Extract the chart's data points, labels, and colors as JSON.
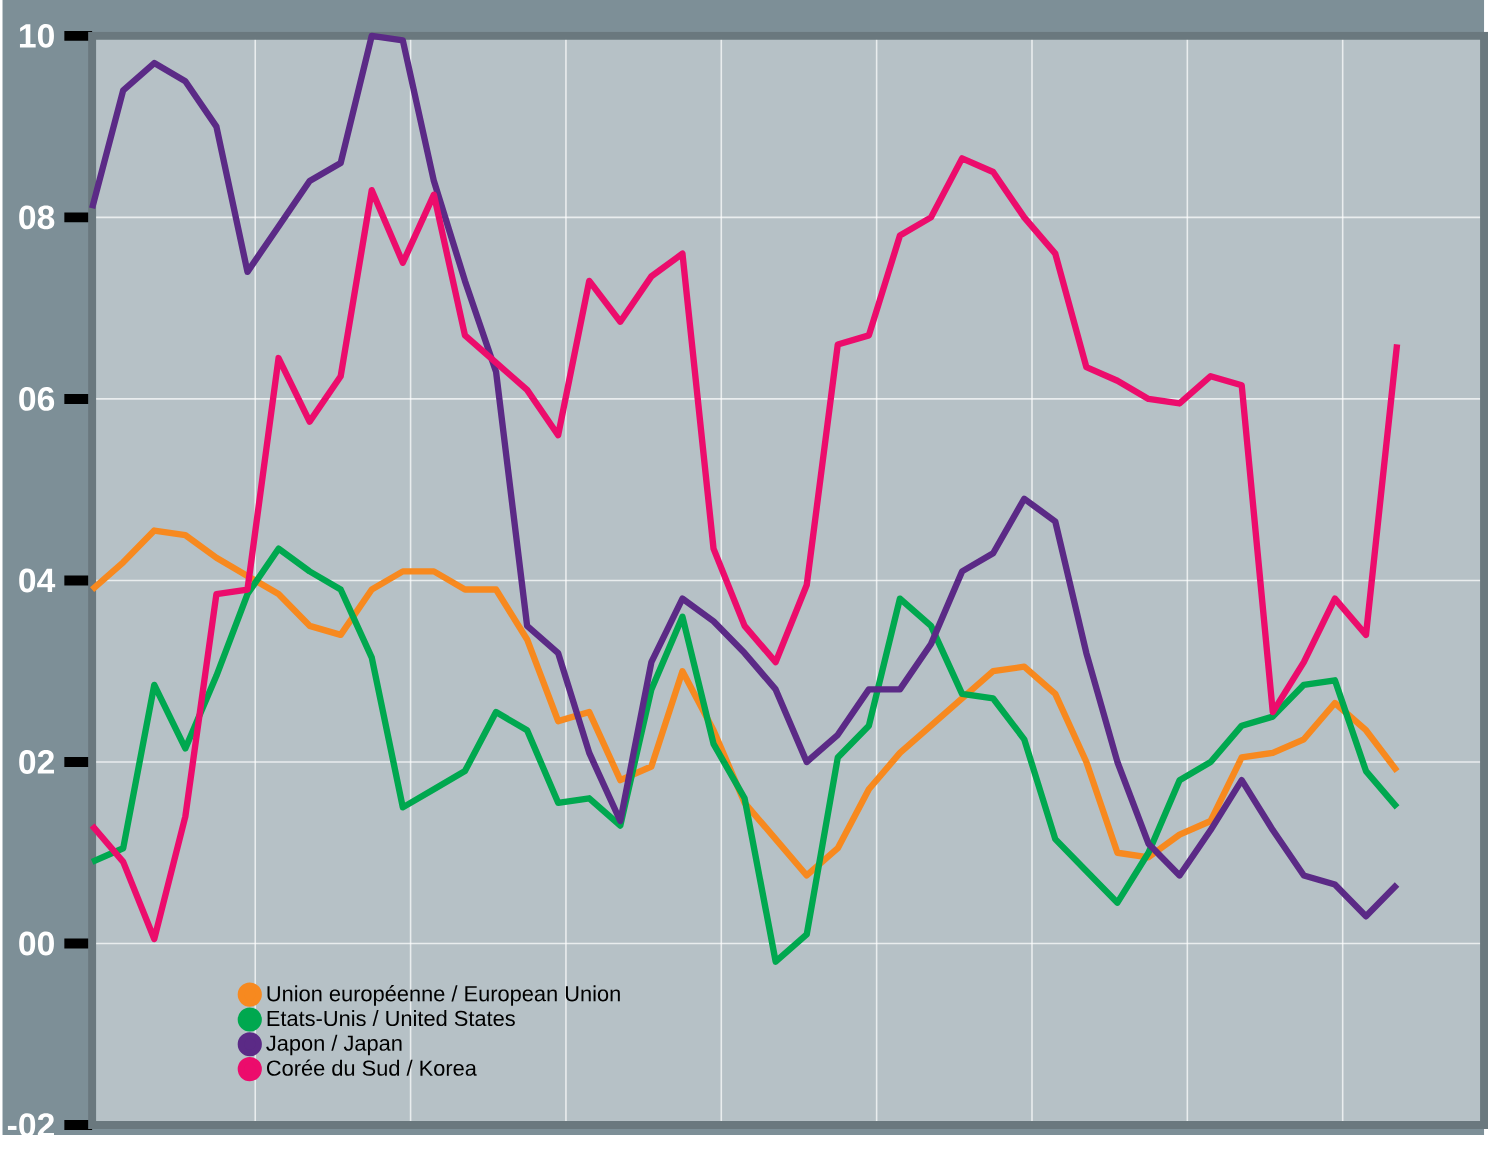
{
  "chart_data": {
    "type": "line",
    "categories": [
      null,
      null,
      null,
      null,
      null,
      null,
      null,
      null,
      null,
      null,
      null,
      null,
      null,
      null,
      null,
      null,
      null,
      null,
      null,
      null,
      null,
      null,
      null,
      null,
      null,
      null,
      null,
      null,
      null,
      null,
      null,
      null,
      null,
      null,
      null,
      null,
      null,
      null,
      null,
      null,
      null,
      null,
      null
    ],
    "series": [
      {
        "name": "Union européenne / European Union",
        "color": "#f7891f",
        "values": [
          3.9,
          4.2,
          4.55,
          4.5,
          4.25,
          4.05,
          3.85,
          3.5,
          3.4,
          3.9,
          4.1,
          4.1,
          3.9,
          3.9,
          3.35,
          2.45,
          2.55,
          1.8,
          1.95,
          3.0,
          2.35,
          1.55,
          1.15,
          0.75,
          1.05,
          1.7,
          2.1,
          2.4,
          2.7,
          3.0,
          3.05,
          2.75,
          2.0,
          1.0,
          0.95,
          1.2,
          1.35,
          2.05,
          2.1,
          2.25,
          2.65,
          2.35,
          1.9
        ]
      },
      {
        "name": "Etats-Unis / United States",
        "color": "#00a84f",
        "values": [
          0.9,
          1.05,
          2.85,
          2.15,
          2.95,
          3.85,
          4.35,
          4.1,
          3.9,
          3.15,
          1.5,
          1.7,
          1.9,
          2.55,
          2.35,
          1.55,
          1.6,
          1.3,
          2.8,
          3.6,
          2.2,
          1.6,
          -0.2,
          0.1,
          2.05,
          2.4,
          3.8,
          3.5,
          2.75,
          2.7,
          2.25,
          1.15,
          0.8,
          0.45,
          1.0,
          1.8,
          2.0,
          2.4,
          2.5,
          2.85,
          2.9,
          1.9,
          1.5
        ]
      },
      {
        "name": "Japon / Japan",
        "color": "#5b2a86",
        "values": [
          8.1,
          9.4,
          9.7,
          9.5,
          9.0,
          7.4,
          7.9,
          8.4,
          8.6,
          10.0,
          9.95,
          8.4,
          7.3,
          6.3,
          3.5,
          3.2,
          2.1,
          1.35,
          3.1,
          3.8,
          3.55,
          3.2,
          2.8,
          2.0,
          2.3,
          2.8,
          2.8,
          3.3,
          4.1,
          4.3,
          4.9,
          4.65,
          3.2,
          2.0,
          1.1,
          0.75,
          1.25,
          1.8,
          1.25,
          0.75,
          0.65,
          0.3,
          0.65
        ]
      },
      {
        "name": "Corée du Sud / Korea",
        "color": "#ec0c6c",
        "values": [
          1.3,
          0.9,
          0.05,
          1.4,
          3.85,
          3.9,
          6.45,
          5.75,
          6.25,
          8.3,
          7.5,
          8.25,
          6.7,
          6.4,
          6.1,
          5.6,
          7.3,
          6.85,
          7.35,
          7.6,
          4.35,
          3.5,
          3.1,
          3.95,
          6.6,
          6.7,
          7.8,
          8.0,
          8.65,
          8.5,
          8.0,
          7.6,
          6.35,
          6.2,
          6.0,
          5.95,
          6.25,
          6.15,
          2.55,
          3.1,
          3.8,
          3.4,
          6.6
        ]
      }
    ],
    "ylim": [
      -2,
      10
    ],
    "yticks": [
      {
        "value": -2,
        "label": "-02"
      },
      {
        "value": 0,
        "label": "00"
      },
      {
        "value": 2,
        "label": "02"
      },
      {
        "value": 4,
        "label": "04"
      },
      {
        "value": 6,
        "label": "06"
      },
      {
        "value": 8,
        "label": "08"
      },
      10
    ],
    "grid": true,
    "legend": "bottom left",
    "marker": "none",
    "line_style": "solid",
    "tick_labels": "y"
  }
}
